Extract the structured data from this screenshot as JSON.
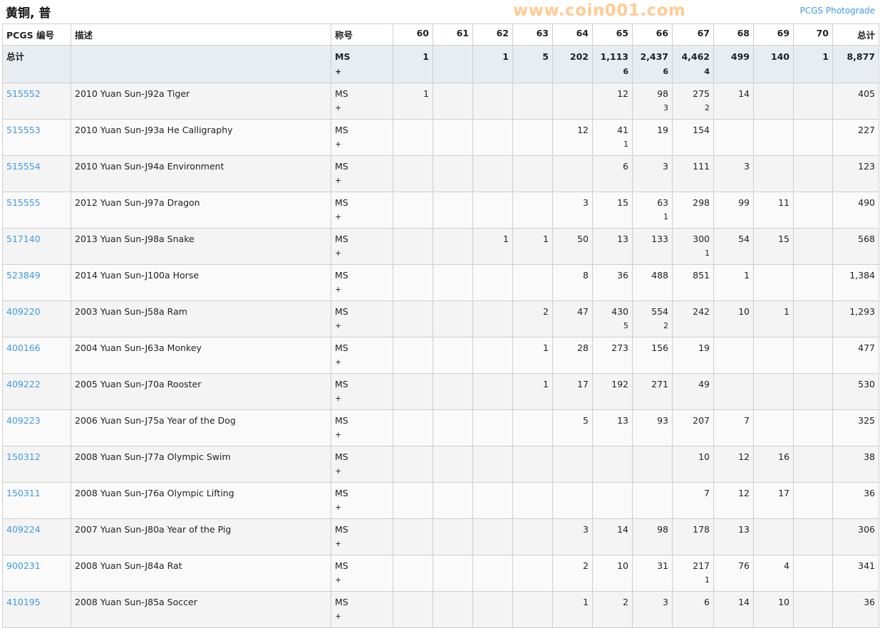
{
  "title": "黄铜, 普",
  "photograde_link": "PCGS Photograde",
  "headers": [
    "PCGS 编号",
    "描述",
    "称号",
    "60",
    "61",
    "62",
    "63",
    "64",
    "65",
    "66",
    "67",
    "68",
    "69",
    "70",
    "总计"
  ],
  "total_row": {
    "id": "总计",
    "desc": "",
    "grade": "MS",
    "grade_plus": "+",
    "counts": [
      "1",
      "",
      "1",
      "5",
      "202",
      "1,113",
      "2,437",
      "4,462",
      "499",
      "140",
      "1"
    ],
    "plus": [
      "",
      "",
      "",
      "",
      "",
      "6",
      "6",
      "4",
      "",
      "",
      ""
    ],
    "total": "8,877"
  },
  "rows": [
    {
      "id": "515552",
      "desc": "2010 Yuan Sun-J92a Tiger",
      "grade": "MS",
      "grade_plus": "+",
      "counts": [
        "1",
        "",
        "",
        "",
        "",
        "12",
        "98",
        "275",
        "14",
        "",
        ""
      ],
      "plus": [
        "",
        "",
        "",
        "",
        "",
        "",
        "3",
        "2",
        "",
        "",
        ""
      ],
      "total": "405"
    },
    {
      "id": "515553",
      "desc": "2010 Yuan Sun-J93a He Calligraphy",
      "grade": "MS",
      "grade_plus": "+",
      "counts": [
        "",
        "",
        "",
        "",
        "12",
        "41",
        "19",
        "154",
        "",
        "",
        ""
      ],
      "plus": [
        "",
        "",
        "",
        "",
        "",
        "1",
        "",
        "",
        "",
        "",
        ""
      ],
      "total": "227"
    },
    {
      "id": "515554",
      "desc": "2010 Yuan Sun-J94a Environment",
      "grade": "MS",
      "grade_plus": "+",
      "counts": [
        "",
        "",
        "",
        "",
        "",
        "6",
        "3",
        "111",
        "3",
        "",
        ""
      ],
      "plus": [
        "",
        "",
        "",
        "",
        "",
        "",
        "",
        "",
        "",
        "",
        ""
      ],
      "total": "123"
    },
    {
      "id": "515555",
      "desc": "2012 Yuan Sun-J97a Dragon",
      "grade": "MS",
      "grade_plus": "+",
      "counts": [
        "",
        "",
        "",
        "",
        "3",
        "15",
        "63",
        "298",
        "99",
        "11",
        ""
      ],
      "plus": [
        "",
        "",
        "",
        "",
        "",
        "",
        "1",
        "",
        "",
        "",
        ""
      ],
      "total": "490"
    },
    {
      "id": "517140",
      "desc": "2013 Yuan Sun-J98a Snake",
      "grade": "MS",
      "grade_plus": "+",
      "counts": [
        "",
        "",
        "1",
        "1",
        "50",
        "13",
        "133",
        "300",
        "54",
        "15",
        ""
      ],
      "plus": [
        "",
        "",
        "",
        "",
        "",
        "",
        "",
        "1",
        "",
        "",
        ""
      ],
      "total": "568"
    },
    {
      "id": "523849",
      "desc": "2014 Yuan Sun-J100a Horse",
      "grade": "MS",
      "grade_plus": "+",
      "counts": [
        "",
        "",
        "",
        "",
        "8",
        "36",
        "488",
        "851",
        "1",
        "",
        ""
      ],
      "plus": [
        "",
        "",
        "",
        "",
        "",
        "",
        "",
        "",
        "",
        "",
        ""
      ],
      "total": "1,384"
    },
    {
      "id": "409220",
      "desc": "2003 Yuan Sun-J58a Ram",
      "grade": "MS",
      "grade_plus": "+",
      "counts": [
        "",
        "",
        "",
        "2",
        "47",
        "430",
        "554",
        "242",
        "10",
        "1",
        ""
      ],
      "plus": [
        "",
        "",
        "",
        "",
        "",
        "5",
        "2",
        "",
        "",
        "",
        ""
      ],
      "total": "1,293"
    },
    {
      "id": "400166",
      "desc": "2004 Yuan Sun-J63a Monkey",
      "grade": "MS",
      "grade_plus": "+",
      "counts": [
        "",
        "",
        "",
        "1",
        "28",
        "273",
        "156",
        "19",
        "",
        "",
        ""
      ],
      "plus": [
        "",
        "",
        "",
        "",
        "",
        "",
        "",
        "",
        "",
        "",
        ""
      ],
      "total": "477"
    },
    {
      "id": "409222",
      "desc": "2005 Yuan Sun-J70a Rooster",
      "grade": "MS",
      "grade_plus": "+",
      "counts": [
        "",
        "",
        "",
        "1",
        "17",
        "192",
        "271",
        "49",
        "",
        "",
        ""
      ],
      "plus": [
        "",
        "",
        "",
        "",
        "",
        "",
        "",
        "",
        "",
        "",
        ""
      ],
      "total": "530"
    },
    {
      "id": "409223",
      "desc": "2006 Yuan Sun-J75a Year of the Dog",
      "grade": "MS",
      "grade_plus": "+",
      "counts": [
        "",
        "",
        "",
        "",
        "5",
        "13",
        "93",
        "207",
        "7",
        "",
        ""
      ],
      "plus": [
        "",
        "",
        "",
        "",
        "",
        "",
        "",
        "",
        "",
        "",
        ""
      ],
      "total": "325"
    },
    {
      "id": "150312",
      "desc": "2008 Yuan Sun-J77a Olympic Swim",
      "grade": "MS",
      "grade_plus": "+",
      "counts": [
        "",
        "",
        "",
        "",
        "",
        "",
        "",
        "10",
        "12",
        "16",
        ""
      ],
      "plus": [
        "",
        "",
        "",
        "",
        "",
        "",
        "",
        "",
        "",
        "",
        ""
      ],
      "total": "38"
    },
    {
      "id": "150311",
      "desc": "2008 Yuan Sun-J76a Olympic Lifting",
      "grade": "MS",
      "grade_plus": "+",
      "counts": [
        "",
        "",
        "",
        "",
        "",
        "",
        "",
        "7",
        "12",
        "17",
        ""
      ],
      "plus": [
        "",
        "",
        "",
        "",
        "",
        "",
        "",
        "",
        "",
        "",
        ""
      ],
      "total": "36"
    },
    {
      "id": "409224",
      "desc": "2007 Yuan Sun-J80a Year of the Pig",
      "grade": "MS",
      "grade_plus": "+",
      "counts": [
        "",
        "",
        "",
        "",
        "3",
        "14",
        "98",
        "178",
        "13",
        "",
        ""
      ],
      "plus": [
        "",
        "",
        "",
        "",
        "",
        "",
        "",
        "",
        "",
        "",
        ""
      ],
      "total": "306"
    },
    {
      "id": "900231",
      "desc": "2008 Yuan Sun-J84a Rat",
      "grade": "MS",
      "grade_plus": "+",
      "counts": [
        "",
        "",
        "",
        "",
        "2",
        "10",
        "31",
        "217",
        "76",
        "4",
        ""
      ],
      "plus": [
        "",
        "",
        "",
        "",
        "",
        "",
        "",
        "1",
        "",
        "",
        ""
      ],
      "total": "341"
    },
    {
      "id": "410195",
      "desc": "2008 Yuan Sun-J85a Soccer",
      "grade": "MS",
      "grade_plus": "+",
      "counts": [
        "",
        "",
        "",
        "",
        "1",
        "2",
        "3",
        "6",
        "14",
        "10",
        ""
      ],
      "plus": [
        "",
        "",
        "",
        "",
        "",
        "",
        "",
        "",
        "",
        "",
        ""
      ],
      "total": "36"
    }
  ],
  "watermark": "www.coin001.com",
  "colors": {
    "link": "#3d9ae8",
    "total_row_bg": "#e8edf1",
    "watermark": "#ffa03c"
  }
}
